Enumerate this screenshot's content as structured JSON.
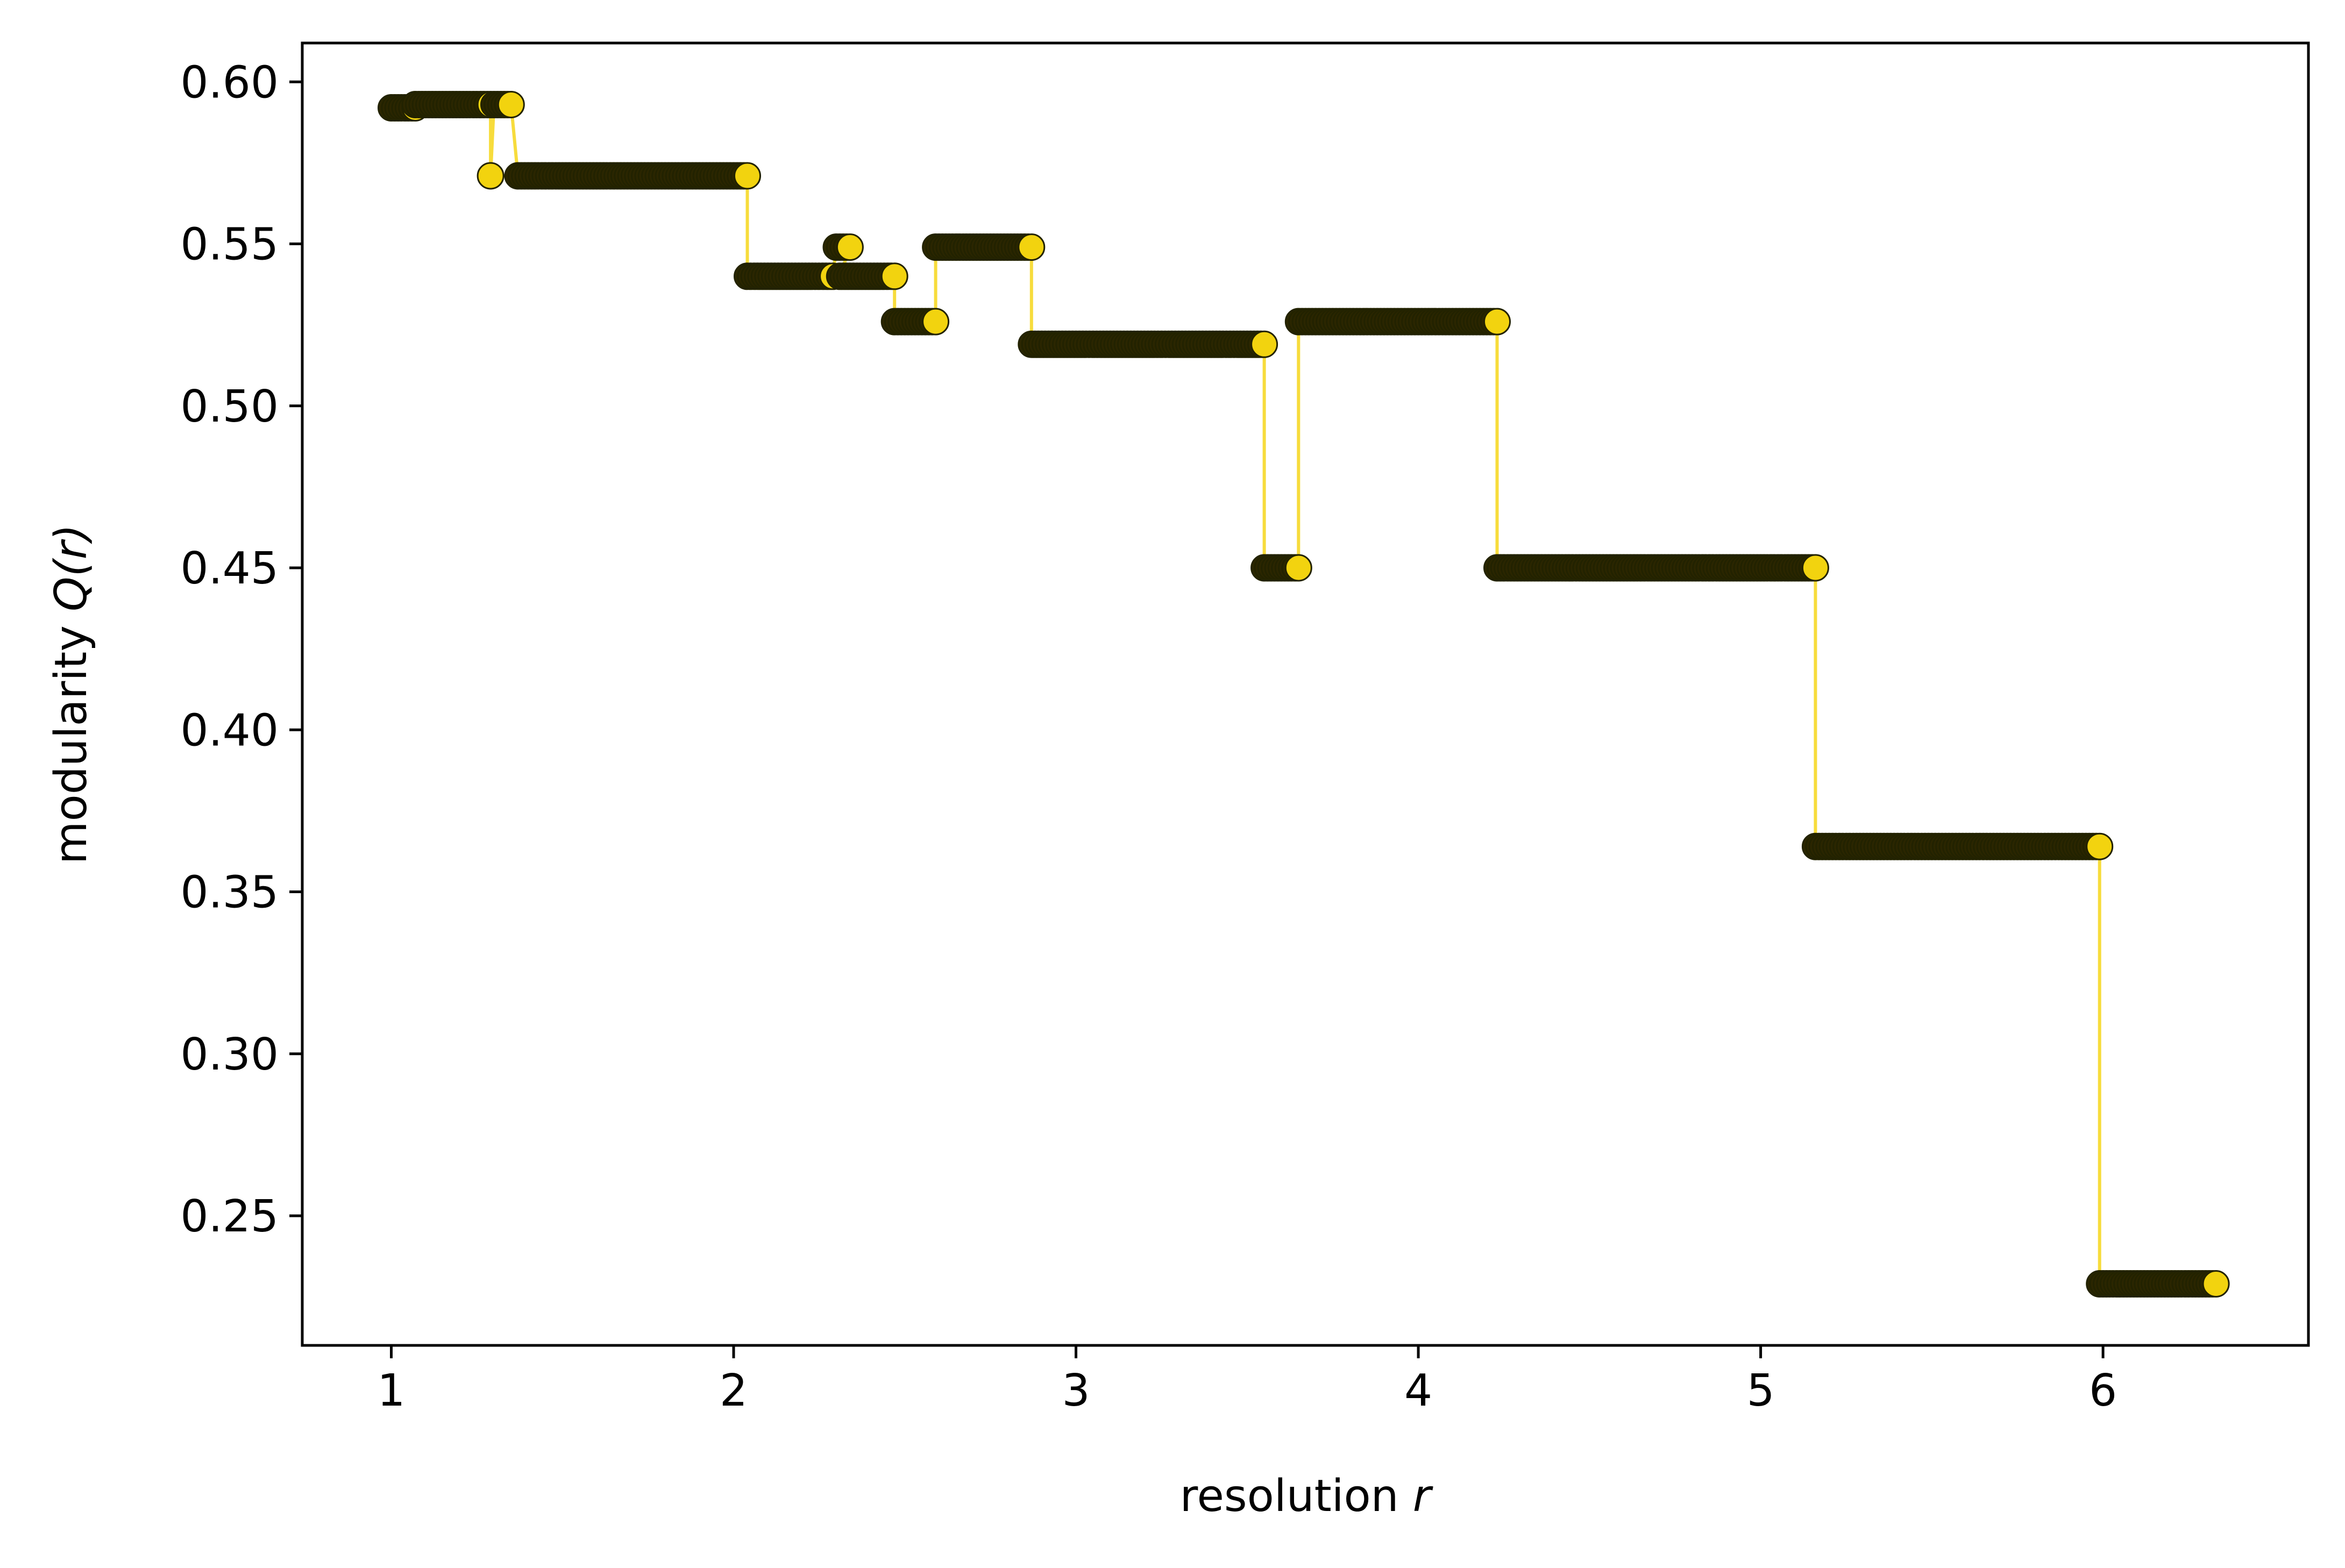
{
  "chart_data": {
    "type": "scatter",
    "title": "",
    "xlabel": "resolution",
    "xlabel_var": "r",
    "ylabel": "modularity",
    "ylabel_var": "Q(r)",
    "xlim": [
      0.74,
      6.6
    ],
    "ylim": [
      0.21,
      0.612
    ],
    "xticks": [
      1,
      2,
      3,
      4,
      5,
      6
    ],
    "xtick_labels": [
      "1",
      "2",
      "3",
      "4",
      "5",
      "6"
    ],
    "yticks": [
      0.25,
      0.3,
      0.35,
      0.4,
      0.45,
      0.5,
      0.55,
      0.6
    ],
    "ytick_labels": [
      "0.25",
      "0.30",
      "0.35",
      "0.40",
      "0.45",
      "0.50",
      "0.55",
      "0.60"
    ],
    "grid": false,
    "legend": "none",
    "colors": {
      "line": "#f7dc3c",
      "marker_fill": "#f2d30f",
      "marker_edge": "#222200",
      "marker_stack": "#2b2600",
      "axes": "#000000"
    },
    "plateaus": [
      {
        "x_start": 1.0,
        "x_end": 1.07,
        "y": 0.592
      },
      {
        "x_start": 1.07,
        "x_end": 1.29,
        "y": 0.593
      },
      {
        "x_start": 1.29,
        "x_end": 1.29,
        "y": 0.571
      },
      {
        "x_start": 1.3,
        "x_end": 1.35,
        "y": 0.593
      },
      {
        "x_start": 1.37,
        "x_end": 2.04,
        "y": 0.571
      },
      {
        "x_start": 2.04,
        "x_end": 2.29,
        "y": 0.54
      },
      {
        "x_start": 2.3,
        "x_end": 2.34,
        "y": 0.549
      },
      {
        "x_start": 2.31,
        "x_end": 2.47,
        "y": 0.54
      },
      {
        "x_start": 2.47,
        "x_end": 2.59,
        "y": 0.526
      },
      {
        "x_start": 2.59,
        "x_end": 2.87,
        "y": 0.549
      },
      {
        "x_start": 2.87,
        "x_end": 3.55,
        "y": 0.519
      },
      {
        "x_start": 3.55,
        "x_end": 3.65,
        "y": 0.45
      },
      {
        "x_start": 3.65,
        "x_end": 4.23,
        "y": 0.526
      },
      {
        "x_start": 4.23,
        "x_end": 5.16,
        "y": 0.45
      },
      {
        "x_start": 5.16,
        "x_end": 5.99,
        "y": 0.364
      },
      {
        "x_start": 5.99,
        "x_end": 6.33,
        "y": 0.229
      }
    ]
  }
}
